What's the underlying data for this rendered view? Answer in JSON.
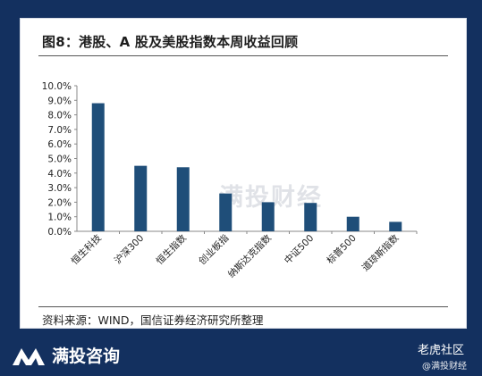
{
  "card": {
    "title": "图8：港股、A 股及美股指数本周收益回顾",
    "source": "资料来源：WIND，国信证券经济研究所整理",
    "watermark": "满投财经"
  },
  "footer": {
    "brand": "满投咨询",
    "community": "老虎社区",
    "handle": "@满投财经"
  },
  "colors": {
    "bar": "#1f4e79",
    "background": "#13305f"
  },
  "chart_data": {
    "type": "bar",
    "categories": [
      "恒生科技",
      "沪深300",
      "恒生指数",
      "创业板指",
      "纳斯达克指数",
      "中证500",
      "标普500",
      "道琼斯指数"
    ],
    "values": [
      8.8,
      4.5,
      4.4,
      2.6,
      2.0,
      1.95,
      1.0,
      0.65
    ],
    "yticks": [
      "0.0%",
      "1.0%",
      "2.0%",
      "3.0%",
      "4.0%",
      "5.0%",
      "6.0%",
      "7.0%",
      "8.0%",
      "9.0%",
      "10.0%"
    ],
    "ylim": [
      0,
      10
    ],
    "grid": false
  }
}
